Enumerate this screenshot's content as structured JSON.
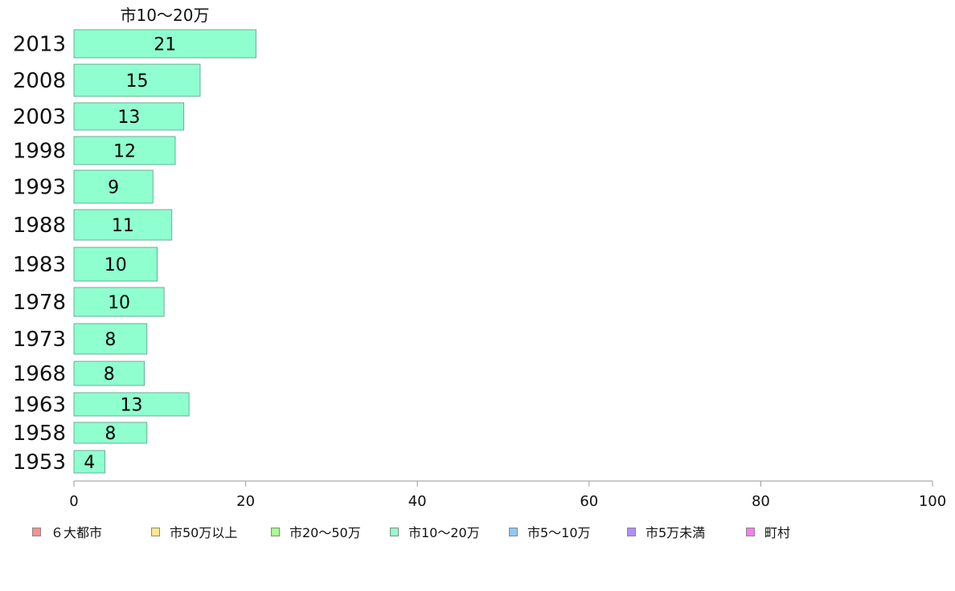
{
  "chart_data": {
    "type": "bar",
    "orientation": "horizontal",
    "title": "市10〜20万",
    "xlim": [
      0,
      100
    ],
    "xticks": [
      0,
      20,
      40,
      60,
      80,
      100
    ],
    "grid": false,
    "legend_position": "bottom",
    "categories": [
      "2013",
      "2008",
      "2003",
      "1998",
      "1993",
      "1988",
      "1983",
      "1978",
      "1973",
      "1968",
      "1963",
      "1958",
      "1953"
    ],
    "series": [
      {
        "name": "市10〜20万",
        "color": "#8fffd0",
        "values": [
          21.2,
          14.7,
          12.8,
          11.8,
          9.2,
          11.4,
          9.7,
          10.5,
          8.5,
          8.2,
          13.4,
          8.5,
          3.6
        ],
        "labels": [
          "21",
          "15",
          "13",
          "12",
          "9",
          "11",
          "10",
          "10",
          "8",
          "8",
          "13",
          "8",
          "4"
        ]
      }
    ]
  },
  "legend": [
    {
      "label": "６大都市",
      "color": "#ff8f8f"
    },
    {
      "label": "市50万以上",
      "color": "#ffe88f"
    },
    {
      "label": "市20〜50万",
      "color": "#a8ff8f"
    },
    {
      "label": "市10〜20万",
      "color": "#8fffd0"
    },
    {
      "label": "市5〜10万",
      "color": "#8fc8f8"
    },
    {
      "label": "市5万未満",
      "color": "#b08ff8"
    },
    {
      "label": "町村",
      "color": "#f87ef0"
    }
  ]
}
